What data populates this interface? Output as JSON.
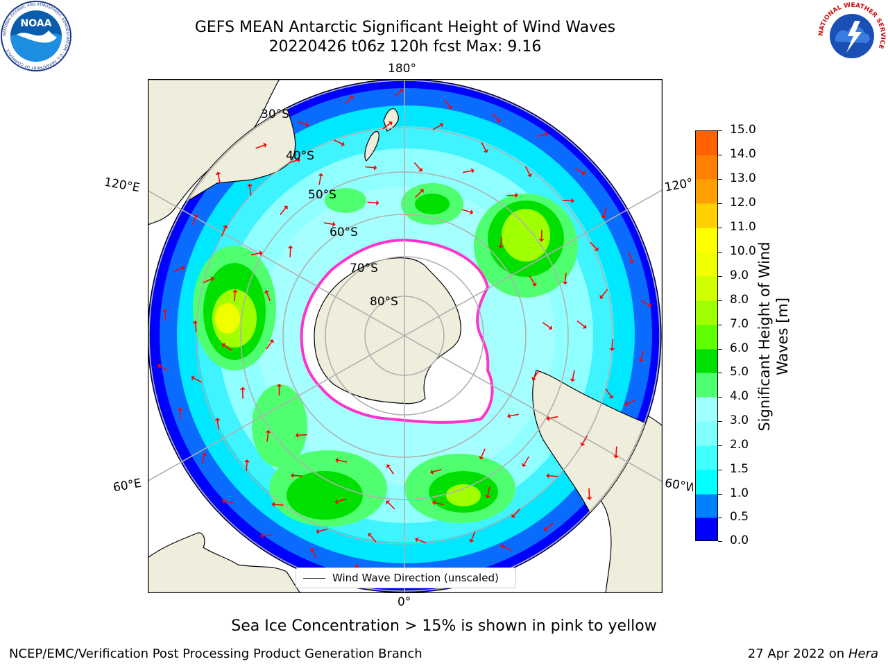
{
  "header": {
    "title_line1": "GEFS MEAN Antarctic Significant Height of Wind Waves",
    "title_line2": "20220426 t06z 120h fcst   Max: 9.16"
  },
  "logos": {
    "noaa_text": "NOAA",
    "noaa_ring_text": "NATIONAL OCEANIC AND ATMOSPHERIC ADMINISTRATION · U.S. DEPARTMENT OF COMMERCE",
    "nws_ring_text": "NATIONAL WEATHER SERVICE"
  },
  "map": {
    "lon_labels": {
      "top": "180°",
      "left": "120°E",
      "right": "120°W",
      "bottom_left": "60°E",
      "bottom_right": "60°W",
      "bottom": "0°"
    },
    "lat_labels": [
      "30°S",
      "40°S",
      "50°S",
      "60°S",
      "70°S",
      "80°S"
    ],
    "legend_label": "Wind Wave Direction (unscaled)",
    "colors": {
      "land": "#efeddc",
      "ocean_calm": "#0000ff",
      "ice_edge": "#ff33cc",
      "arrow": "#ff0000",
      "grid": "#b0b0b0"
    }
  },
  "colorbar": {
    "label_line1": "Significant Height of Wind",
    "label_line2": "Waves [m]",
    "ticks": [
      "15.0",
      "14.0",
      "13.0",
      "12.0",
      "11.0",
      "10.0",
      "9.0",
      "8.0",
      "7.0",
      "6.0",
      "5.0",
      "4.0",
      "3.0",
      "2.0",
      "1.5",
      "1.0",
      "0.5",
      "0.0"
    ],
    "colors_bottom_to_top": [
      "#0000ff",
      "#0080ff",
      "#00ffff",
      "#40ffff",
      "#80ffff",
      "#a0ffff",
      "#50ff70",
      "#00e000",
      "#60ff00",
      "#a0ff00",
      "#d0ff00",
      "#f0ff00",
      "#ffff00",
      "#ffd000",
      "#ffa000",
      "#ff8000",
      "#ff6000",
      "#ff3000",
      "#ff0000"
    ]
  },
  "note": "Sea Ice Concentration > 15% is shown in pink to yellow",
  "footer": {
    "left": "NCEP/EMC/Verification Post Processing Product Generation Branch",
    "right_date": "27 Apr 2022 on ",
    "right_host": "Hera"
  }
}
